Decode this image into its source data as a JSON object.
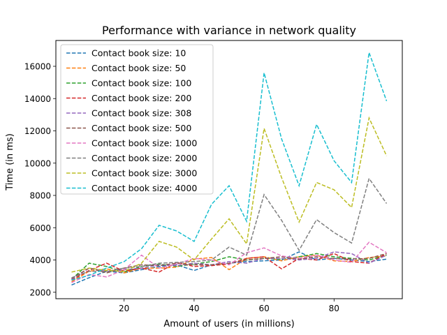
{
  "chart_data": {
    "type": "line",
    "title": "Performance with variance in network quality",
    "xlabel": "Amount of users (in millions)",
    "ylabel": "Time (in ms)",
    "xlim": [
      0.5,
      99.5
    ],
    "ylim": [
      1600,
      17600
    ],
    "xticks": [
      20,
      40,
      60,
      80
    ],
    "yticks": [
      2000,
      4000,
      6000,
      8000,
      10000,
      12000,
      14000,
      16000
    ],
    "grid": false,
    "legend_position": "top-left",
    "line_style": "dashed",
    "x": [
      5,
      10,
      15,
      20,
      25,
      30,
      35,
      40,
      45,
      50,
      55,
      60,
      65,
      70,
      75,
      80,
      85,
      90,
      95
    ],
    "series": [
      {
        "name": "Contact book size: 10",
        "color": "#1f77b4",
        "values": [
          2450,
          2900,
          3300,
          3200,
          3400,
          3600,
          3700,
          3350,
          3700,
          3800,
          3900,
          3950,
          4000,
          4500,
          4000,
          4100,
          4000,
          3900,
          4050
        ]
      },
      {
        "name": "Contact book size: 50",
        "color": "#ff7f0e",
        "values": [
          2650,
          3300,
          3450,
          3200,
          3500,
          3500,
          3550,
          4050,
          4150,
          3400,
          4100,
          4200,
          3950,
          4200,
          4300,
          3950,
          3900,
          4150,
          4250
        ]
      },
      {
        "name": "Contact book size: 100",
        "color": "#2ca02c",
        "values": [
          2800,
          3800,
          3600,
          3250,
          3600,
          3750,
          3600,
          3750,
          3900,
          4200,
          4000,
          4100,
          4050,
          4200,
          4400,
          4200,
          4100,
          4000,
          4300
        ]
      },
      {
        "name": "Contact book size: 200",
        "color": "#d62728",
        "values": [
          2750,
          3350,
          3800,
          3300,
          3500,
          3250,
          3850,
          3600,
          3650,
          3750,
          4100,
          4200,
          3450,
          4100,
          4000,
          4400,
          3900,
          3800,
          4400
        ]
      },
      {
        "name": "Contact book size: 308",
        "color": "#9467bd",
        "values": [
          2800,
          3500,
          3300,
          3400,
          3500,
          3700,
          3650,
          3800,
          3700,
          3900,
          3800,
          4100,
          4100,
          4000,
          4100,
          4500,
          4400,
          3800,
          4300
        ]
      },
      {
        "name": "Contact book size: 500",
        "color": "#8c564b",
        "values": [
          2850,
          3500,
          3200,
          3500,
          3700,
          3650,
          3800,
          3700,
          3700,
          3800,
          4000,
          4100,
          4200,
          4050,
          4200,
          4100,
          4050,
          4100,
          4400
        ]
      },
      {
        "name": "Contact book size: 1000",
        "color": "#e377c2",
        "values": [
          2600,
          3100,
          2950,
          3400,
          4300,
          3500,
          3750,
          4100,
          4000,
          3700,
          4450,
          4750,
          4250,
          4100,
          4300,
          4000,
          3850,
          5100,
          4450
        ]
      },
      {
        "name": "Contact book size: 2000",
        "color": "#7f7f7f",
        "values": [
          2900,
          3300,
          3300,
          3500,
          3600,
          3800,
          3850,
          3900,
          4000,
          4800,
          4300,
          8050,
          6450,
          4600,
          6500,
          5700,
          5050,
          9050,
          7500
        ]
      },
      {
        "name": "Contact book size: 3000",
        "color": "#bcbd22",
        "values": [
          3250,
          3500,
          3350,
          3300,
          3800,
          5150,
          4800,
          4000,
          5300,
          6550,
          5000,
          12150,
          9100,
          6350,
          8800,
          8350,
          7250,
          12800,
          10450
        ]
      },
      {
        "name": "Contact book size: 4000",
        "color": "#17becf",
        "values": [
          2750,
          3050,
          3500,
          3900,
          4700,
          6150,
          5800,
          5150,
          7450,
          8600,
          6400,
          15600,
          11500,
          8600,
          12400,
          10150,
          8800,
          16850,
          13850
        ]
      }
    ]
  }
}
